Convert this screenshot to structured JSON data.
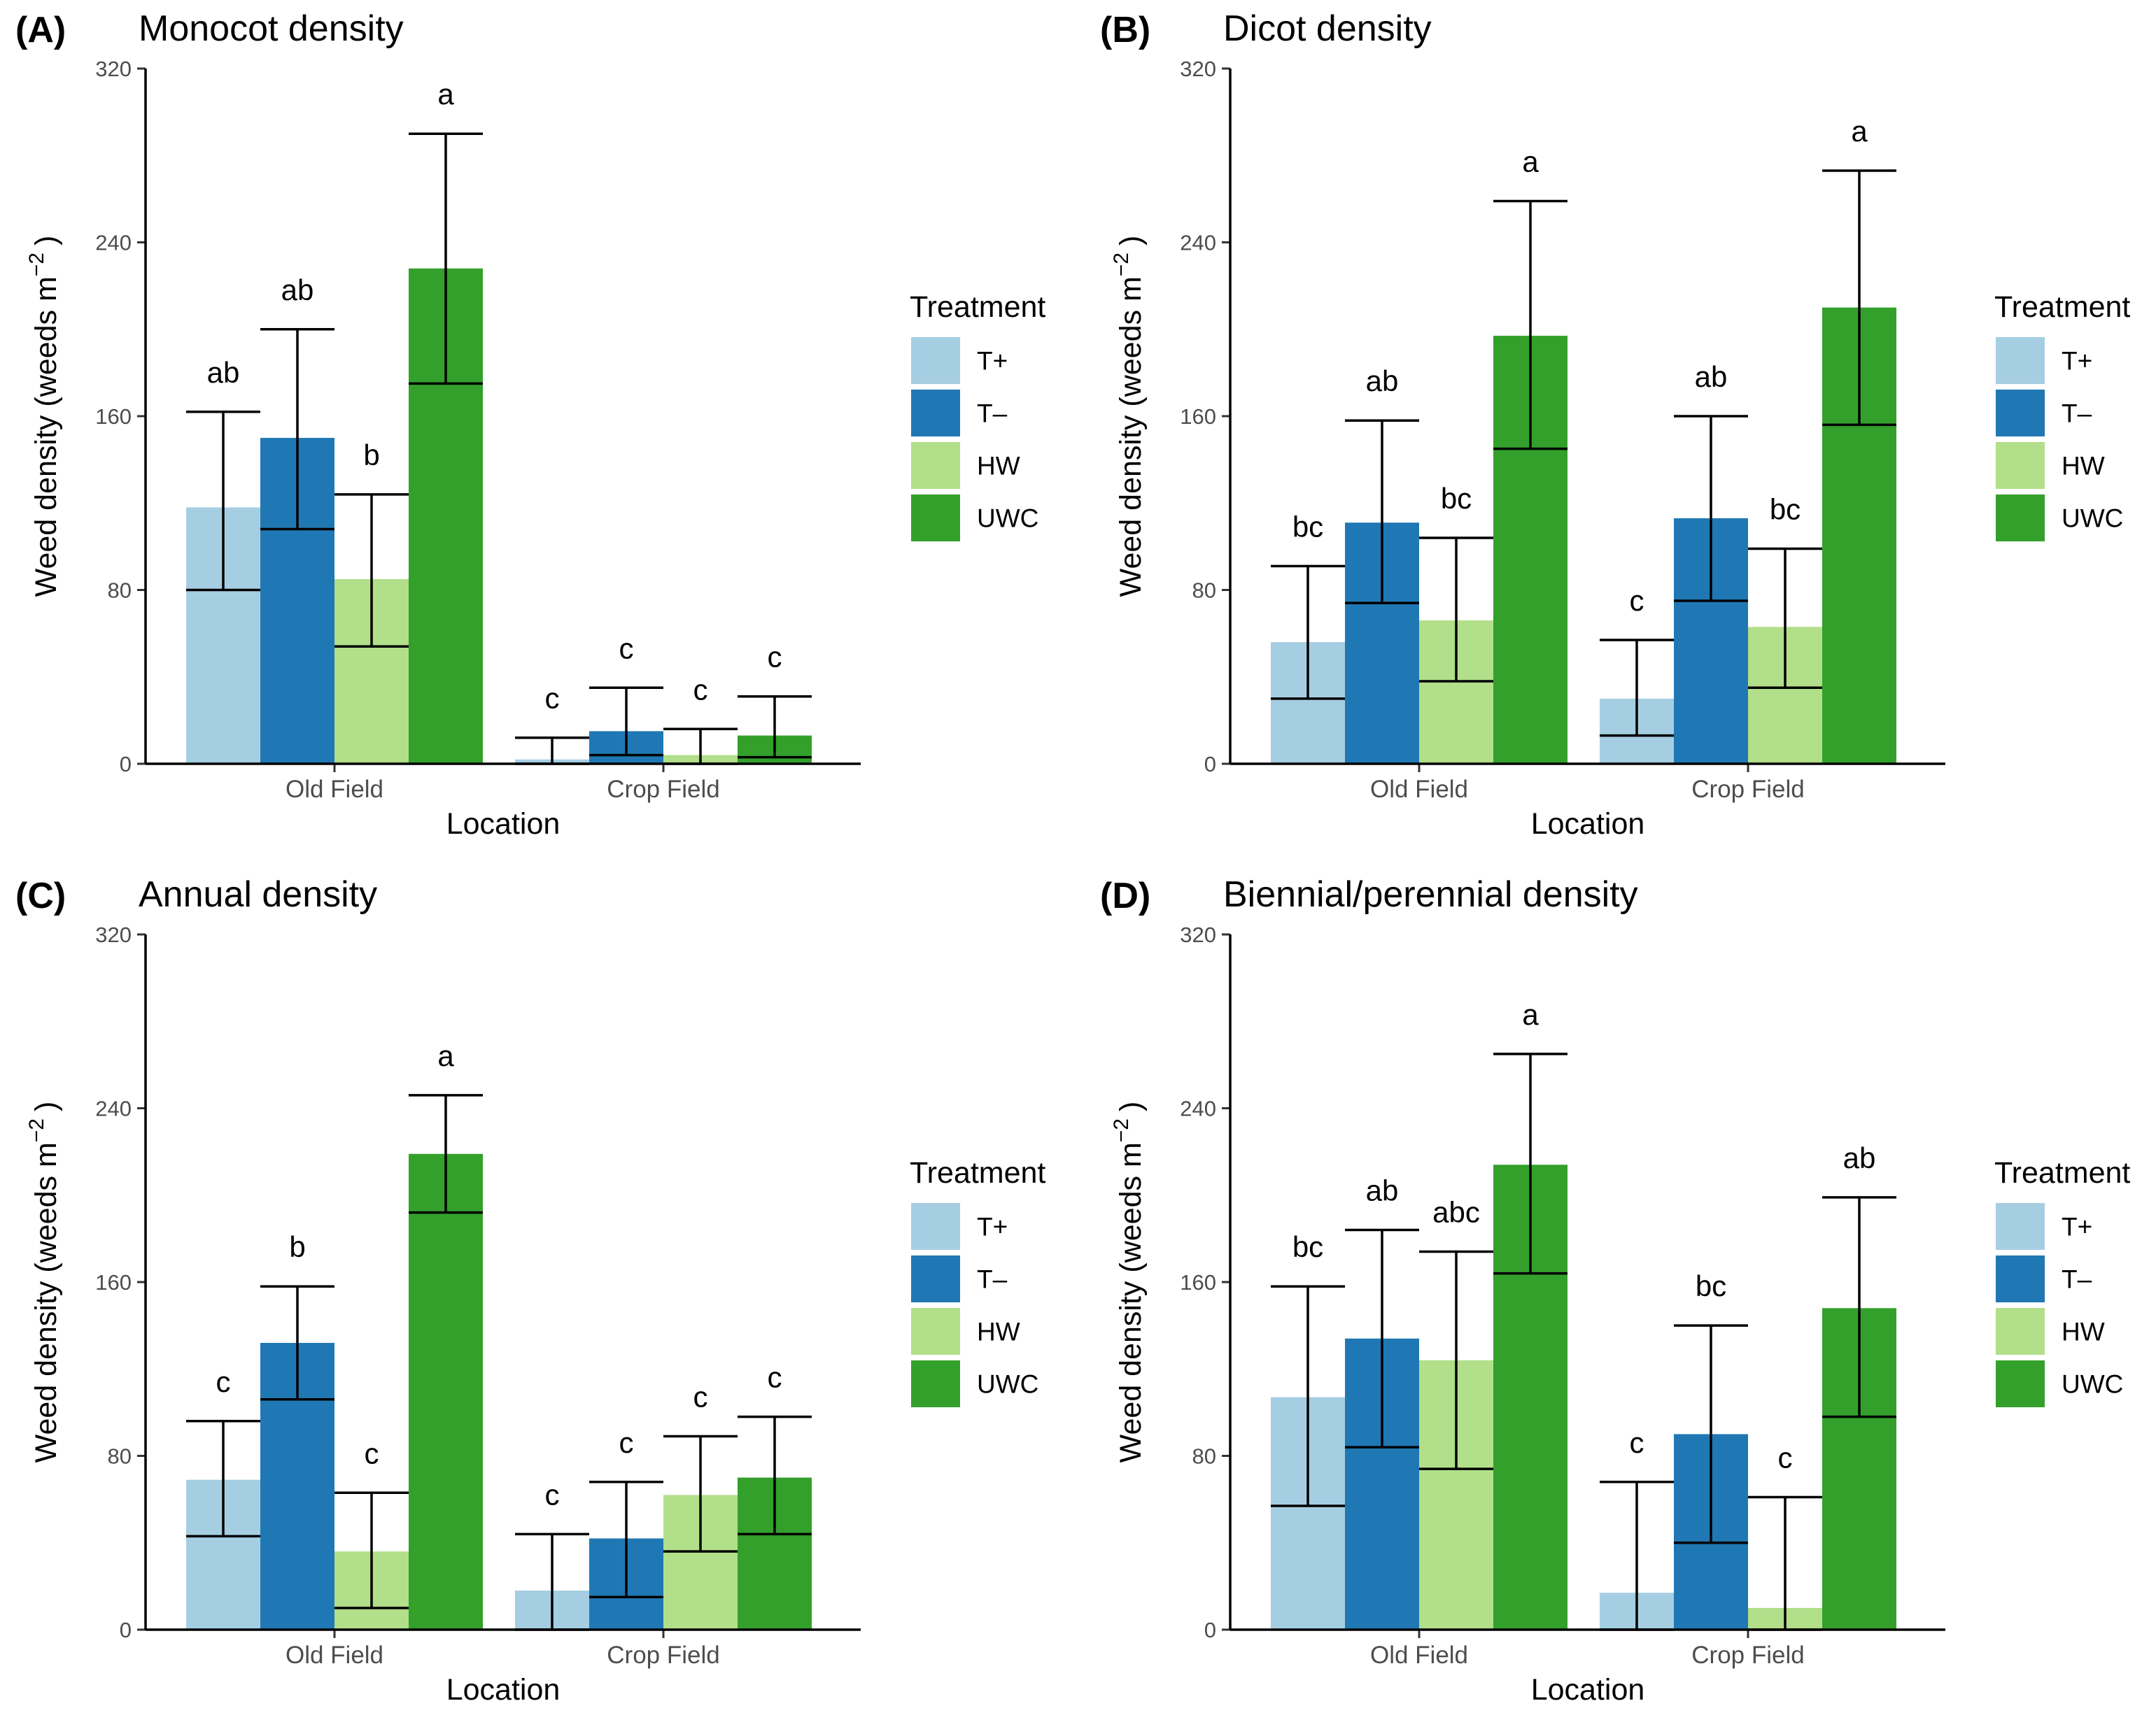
{
  "figure": {
    "legend": {
      "title": "Treatment",
      "entries": [
        {
          "label": "T+",
          "color": "#a6cee3"
        },
        {
          "label": "T–",
          "color": "#1f78b4"
        },
        {
          "label": "HW",
          "color": "#b2df8a"
        },
        {
          "label": "UWC",
          "color": "#33a02c"
        }
      ]
    }
  },
  "chart_data": [
    {
      "panel_label": "(A)",
      "title": "Monocot density",
      "type": "bar",
      "xlabel": "Location",
      "ylabel": "Weed density (weeds m",
      "ylabel_sup": "−2",
      "ylabel_end": ")",
      "ylim": [
        0,
        320
      ],
      "yticks": [
        "0",
        "80",
        "160",
        "240",
        "320"
      ],
      "categories": [
        "Old Field",
        "Crop Field"
      ],
      "series": [
        {
          "name": "T+",
          "values": [
            118,
            2
          ],
          "lower": [
            80,
            0
          ],
          "upper": [
            162,
            12
          ],
          "letters": [
            "ab",
            "c"
          ]
        },
        {
          "name": "T–",
          "values": [
            150,
            15
          ],
          "lower": [
            108,
            4
          ],
          "upper": [
            200,
            35
          ],
          "letters": [
            "ab",
            "c"
          ]
        },
        {
          "name": "HW",
          "values": [
            85,
            4
          ],
          "lower": [
            54,
            0
          ],
          "upper": [
            124,
            16
          ],
          "letters": [
            "b",
            "c"
          ]
        },
        {
          "name": "UWC",
          "values": [
            228,
            13
          ],
          "lower": [
            175,
            3
          ],
          "upper": [
            290,
            31
          ],
          "letters": [
            "a",
            "c"
          ]
        }
      ]
    },
    {
      "panel_label": "(B)",
      "title": "Dicot density",
      "type": "bar",
      "xlabel": "Location",
      "ylabel": "Weed density (weeds m",
      "ylabel_sup": "−2",
      "ylabel_end": ")",
      "ylim": [
        0,
        320
      ],
      "yticks": [
        "0",
        "80",
        "160",
        "240",
        "320"
      ],
      "categories": [
        "Old Field",
        "Crop Field"
      ],
      "series": [
        {
          "name": "T+",
          "values": [
            56,
            30
          ],
          "lower": [
            30,
            13
          ],
          "upper": [
            91,
            57
          ],
          "letters": [
            "bc",
            "c"
          ]
        },
        {
          "name": "T–",
          "values": [
            111,
            113
          ],
          "lower": [
            74,
            75
          ],
          "upper": [
            158,
            160
          ],
          "letters": [
            "ab",
            "ab"
          ]
        },
        {
          "name": "HW",
          "values": [
            66,
            63
          ],
          "lower": [
            38,
            35
          ],
          "upper": [
            104,
            99
          ],
          "letters": [
            "bc",
            "bc"
          ]
        },
        {
          "name": "UWC",
          "values": [
            197,
            210
          ],
          "lower": [
            145,
            156
          ],
          "upper": [
            259,
            273
          ],
          "letters": [
            "a",
            "a"
          ]
        }
      ]
    },
    {
      "panel_label": "(C)",
      "title": "Annual density",
      "type": "bar",
      "xlabel": "Location",
      "ylabel": "Weed density (weeds m",
      "ylabel_sup": "−2",
      "ylabel_end": ")",
      "ylim": [
        0,
        320
      ],
      "yticks": [
        "0",
        "80",
        "160",
        "240",
        "320"
      ],
      "categories": [
        "Old Field",
        "Crop Field"
      ],
      "series": [
        {
          "name": "T+",
          "values": [
            69,
            18
          ],
          "lower": [
            43,
            0
          ],
          "upper": [
            96,
            44
          ],
          "letters": [
            "c",
            "c"
          ]
        },
        {
          "name": "T–",
          "values": [
            132,
            42
          ],
          "lower": [
            106,
            15
          ],
          "upper": [
            158,
            68
          ],
          "letters": [
            "b",
            "c"
          ]
        },
        {
          "name": "HW",
          "values": [
            36,
            62
          ],
          "lower": [
            10,
            36
          ],
          "upper": [
            63,
            89
          ],
          "letters": [
            "c",
            "c"
          ]
        },
        {
          "name": "UWC",
          "values": [
            219,
            70
          ],
          "lower": [
            192,
            44
          ],
          "upper": [
            246,
            98
          ],
          "letters": [
            "a",
            "c"
          ]
        }
      ]
    },
    {
      "panel_label": "(D)",
      "title": "Biennial/perennial density",
      "type": "bar",
      "xlabel": "Location",
      "ylabel": "Weed density (weeds m",
      "ylabel_sup": "−2",
      "ylabel_end": ")",
      "ylim": [
        0,
        320
      ],
      "yticks": [
        "0",
        "80",
        "160",
        "240",
        "320"
      ],
      "categories": [
        "Old Field",
        "Crop Field"
      ],
      "series": [
        {
          "name": "T+",
          "values": [
            107,
            17
          ],
          "lower": [
            57,
            0
          ],
          "upper": [
            158,
            68
          ],
          "letters": [
            "bc",
            "c"
          ]
        },
        {
          "name": "T–",
          "values": [
            134,
            90
          ],
          "lower": [
            84,
            40
          ],
          "upper": [
            184,
            140
          ],
          "letters": [
            "ab",
            "bc"
          ]
        },
        {
          "name": "HW",
          "values": [
            124,
            10
          ],
          "lower": [
            74,
            0
          ],
          "upper": [
            174,
            61
          ],
          "letters": [
            "abc",
            "c"
          ]
        },
        {
          "name": "UWC",
          "values": [
            214,
            148
          ],
          "lower": [
            164,
            98
          ],
          "upper": [
            265,
            199
          ],
          "letters": [
            "a",
            "ab"
          ]
        }
      ]
    }
  ]
}
